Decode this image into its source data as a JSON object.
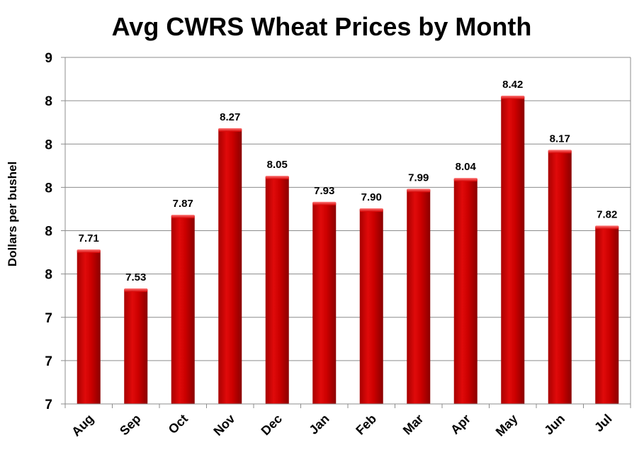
{
  "chart_data": {
    "type": "bar",
    "title": "Avg CWRS Wheat Prices by Month",
    "xlabel": "",
    "ylabel": "Dollars per bushel",
    "categories": [
      "Aug",
      "Sep",
      "Oct",
      "Nov",
      "Dec",
      "Jan",
      "Feb",
      "Mar",
      "Apr",
      "May",
      "Jun",
      "Jul"
    ],
    "values": [
      7.71,
      7.53,
      7.87,
      8.27,
      8.05,
      7.93,
      7.9,
      7.99,
      8.04,
      8.42,
      8.17,
      7.82
    ],
    "value_labels": [
      "7.71",
      "7.53",
      "7.87",
      "8.27",
      "8.05",
      "7.93",
      "7.90",
      "7.99",
      "8.04",
      "8.42",
      "8.17",
      "7.82"
    ],
    "ylim": [
      7.0,
      8.6
    ],
    "yticks": [
      7.0,
      7.2,
      7.4,
      7.6,
      7.8,
      8.0,
      8.2,
      8.4,
      8.6
    ],
    "ytick_labels": [
      "7",
      "7",
      "7",
      "8",
      "8",
      "8",
      "8",
      "8",
      "9"
    ],
    "grid": true,
    "legend": "none",
    "bar_color": "#cc0000",
    "bar_highlight_color": "#ff5a5a",
    "bar_shadow_color": "#8a0000"
  }
}
